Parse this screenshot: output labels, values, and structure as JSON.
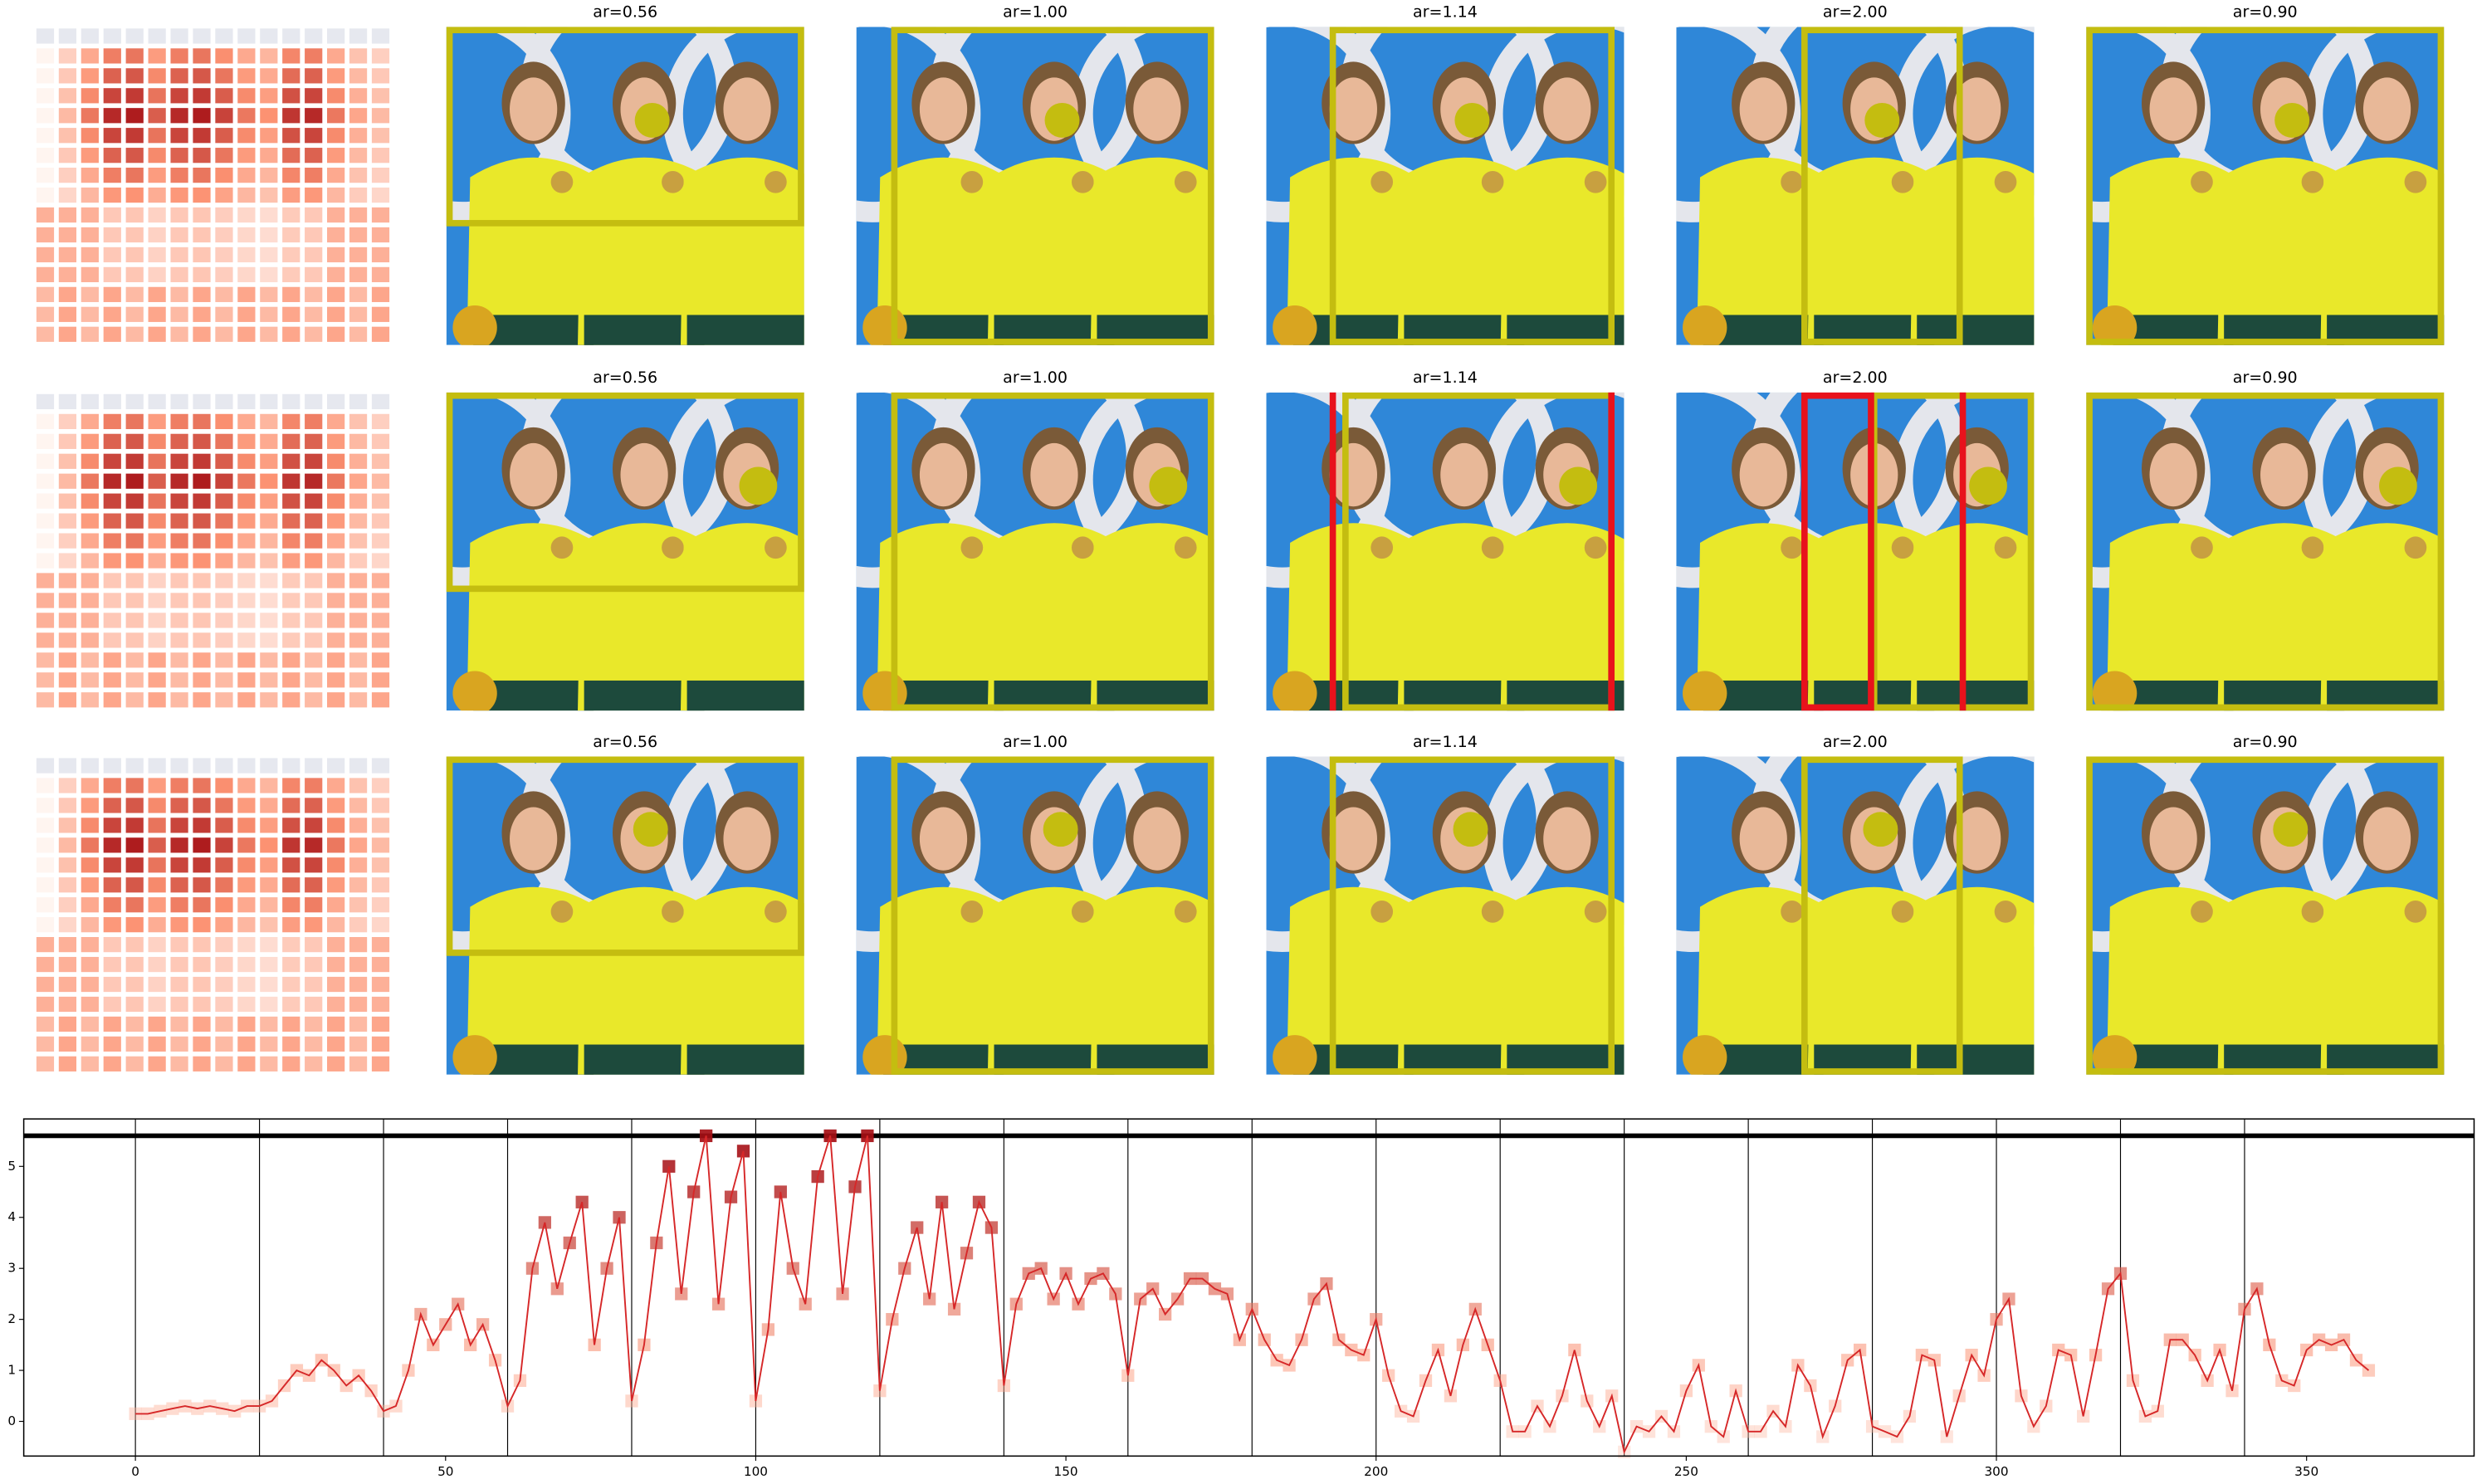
{
  "panels": {
    "rows": [
      {
        "titles": [
          "ar=0.56",
          "ar=1.00",
          "ar=1.14",
          "ar=2.00",
          "ar=0.90"
        ]
      },
      {
        "titles": [
          "ar=0.56",
          "ar=1.00",
          "ar=1.14",
          "ar=2.00",
          "ar=0.90"
        ]
      },
      {
        "titles": [
          "ar=0.56",
          "ar=1.00",
          "ar=1.14",
          "ar=2.00",
          "ar=0.90"
        ]
      }
    ]
  },
  "chart_data": {
    "type": "line",
    "x": [
      0,
      2,
      4,
      6,
      8,
      10,
      12,
      14,
      16,
      18,
      20,
      22,
      24,
      26,
      28,
      30,
      32,
      34,
      36,
      38,
      40,
      42,
      44,
      46,
      48,
      50,
      52,
      54,
      56,
      58,
      60,
      62,
      64,
      66,
      68,
      70,
      72,
      74,
      76,
      78,
      80,
      82,
      84,
      86,
      88,
      90,
      92,
      94,
      96,
      98,
      100,
      102,
      104,
      106,
      108,
      110,
      112,
      114,
      116,
      118,
      120,
      122,
      124,
      126,
      128,
      130,
      132,
      134,
      136,
      138,
      140,
      142,
      144,
      146,
      148,
      150,
      152,
      154,
      156,
      158,
      160,
      162,
      164,
      166,
      168,
      170,
      172,
      174,
      176,
      178,
      180,
      182,
      184,
      186,
      188,
      190,
      192,
      194,
      196,
      198,
      200,
      202,
      204,
      206,
      208,
      210,
      212,
      214,
      216,
      218,
      220,
      222,
      224,
      226,
      228,
      230,
      232,
      234,
      236,
      238,
      240,
      242,
      244,
      246,
      248,
      250,
      252,
      254,
      256,
      258,
      260,
      262,
      264,
      266,
      268,
      270,
      272,
      274,
      276,
      278,
      280,
      282,
      284,
      286,
      288,
      290,
      292,
      294,
      296,
      298,
      300,
      302,
      304,
      306,
      308,
      310,
      312,
      314,
      316,
      318,
      320,
      322,
      324,
      326,
      328,
      330,
      332,
      334,
      336,
      338,
      340,
      342,
      344,
      346,
      348,
      350,
      352,
      354,
      356,
      358,
      360
    ],
    "series": [
      {
        "color": "#d62728",
        "values": [
          0.15,
          0.15,
          0.2,
          0.25,
          0.3,
          0.25,
          0.3,
          0.25,
          0.2,
          0.3,
          0.3,
          0.4,
          0.7,
          1.0,
          0.9,
          1.2,
          1.0,
          0.7,
          0.9,
          0.6,
          0.2,
          0.3,
          1.0,
          2.1,
          1.5,
          1.9,
          2.3,
          1.5,
          1.9,
          1.2,
          0.3,
          0.8,
          3.0,
          3.9,
          2.6,
          3.5,
          4.3,
          1.5,
          3.0,
          4.0,
          0.4,
          1.5,
          3.5,
          5.0,
          2.5,
          4.5,
          5.6,
          2.3,
          4.4,
          5.3,
          0.4,
          1.8,
          4.5,
          3.0,
          2.3,
          4.8,
          5.6,
          2.5,
          4.6,
          5.6,
          0.6,
          2.0,
          3.0,
          3.8,
          2.4,
          4.3,
          2.2,
          3.3,
          4.3,
          3.8,
          0.7,
          2.3,
          2.9,
          3.0,
          2.4,
          2.9,
          2.3,
          2.8,
          2.9,
          2.5,
          0.9,
          2.4,
          2.6,
          2.1,
          2.4,
          2.8,
          2.8,
          2.6,
          2.5,
          1.6,
          2.2,
          1.6,
          1.2,
          1.1,
          1.6,
          2.4,
          2.7,
          1.6,
          1.4,
          1.3,
          2.0,
          0.9,
          0.2,
          0.1,
          0.8,
          1.4,
          0.5,
          1.5,
          2.2,
          1.5,
          0.8,
          -0.2,
          -0.2,
          0.3,
          -0.1,
          0.5,
          1.4,
          0.4,
          -0.1,
          0.5,
          -0.6,
          -0.1,
          -0.2,
          0.1,
          -0.2,
          0.6,
          1.1,
          -0.1,
          -0.3,
          0.6,
          -0.2,
          -0.2,
          0.2,
          -0.1,
          1.1,
          0.7,
          -0.3,
          0.3,
          1.2,
          1.4,
          -0.1,
          -0.2,
          -0.3,
          0.1,
          1.3,
          1.2,
          -0.3,
          0.5,
          1.3,
          0.9,
          2.0,
          2.4,
          0.5,
          -0.1,
          0.3,
          1.4,
          1.3,
          0.1,
          1.3,
          2.6,
          2.9,
          0.8,
          0.1,
          0.2,
          1.6,
          1.6,
          1.3,
          0.8,
          1.4,
          0.6,
          2.2,
          2.6,
          1.5,
          0.8,
          0.7,
          1.4,
          1.6,
          1.5,
          1.6,
          1.2,
          1.0
        ]
      }
    ],
    "xlim": [
      -18,
      377
    ],
    "ylim": [
      -0.68,
      5.93
    ],
    "xticks": [
      0,
      50,
      100,
      150,
      200,
      250,
      300,
      350
    ],
    "yticks": [
      0,
      1,
      2,
      3,
      4,
      5
    ],
    "vlines": [
      0,
      20,
      40,
      60,
      80,
      100,
      120,
      140,
      160,
      180,
      200,
      220,
      240,
      260,
      280,
      300,
      320,
      340
    ],
    "hline": 5.6
  }
}
